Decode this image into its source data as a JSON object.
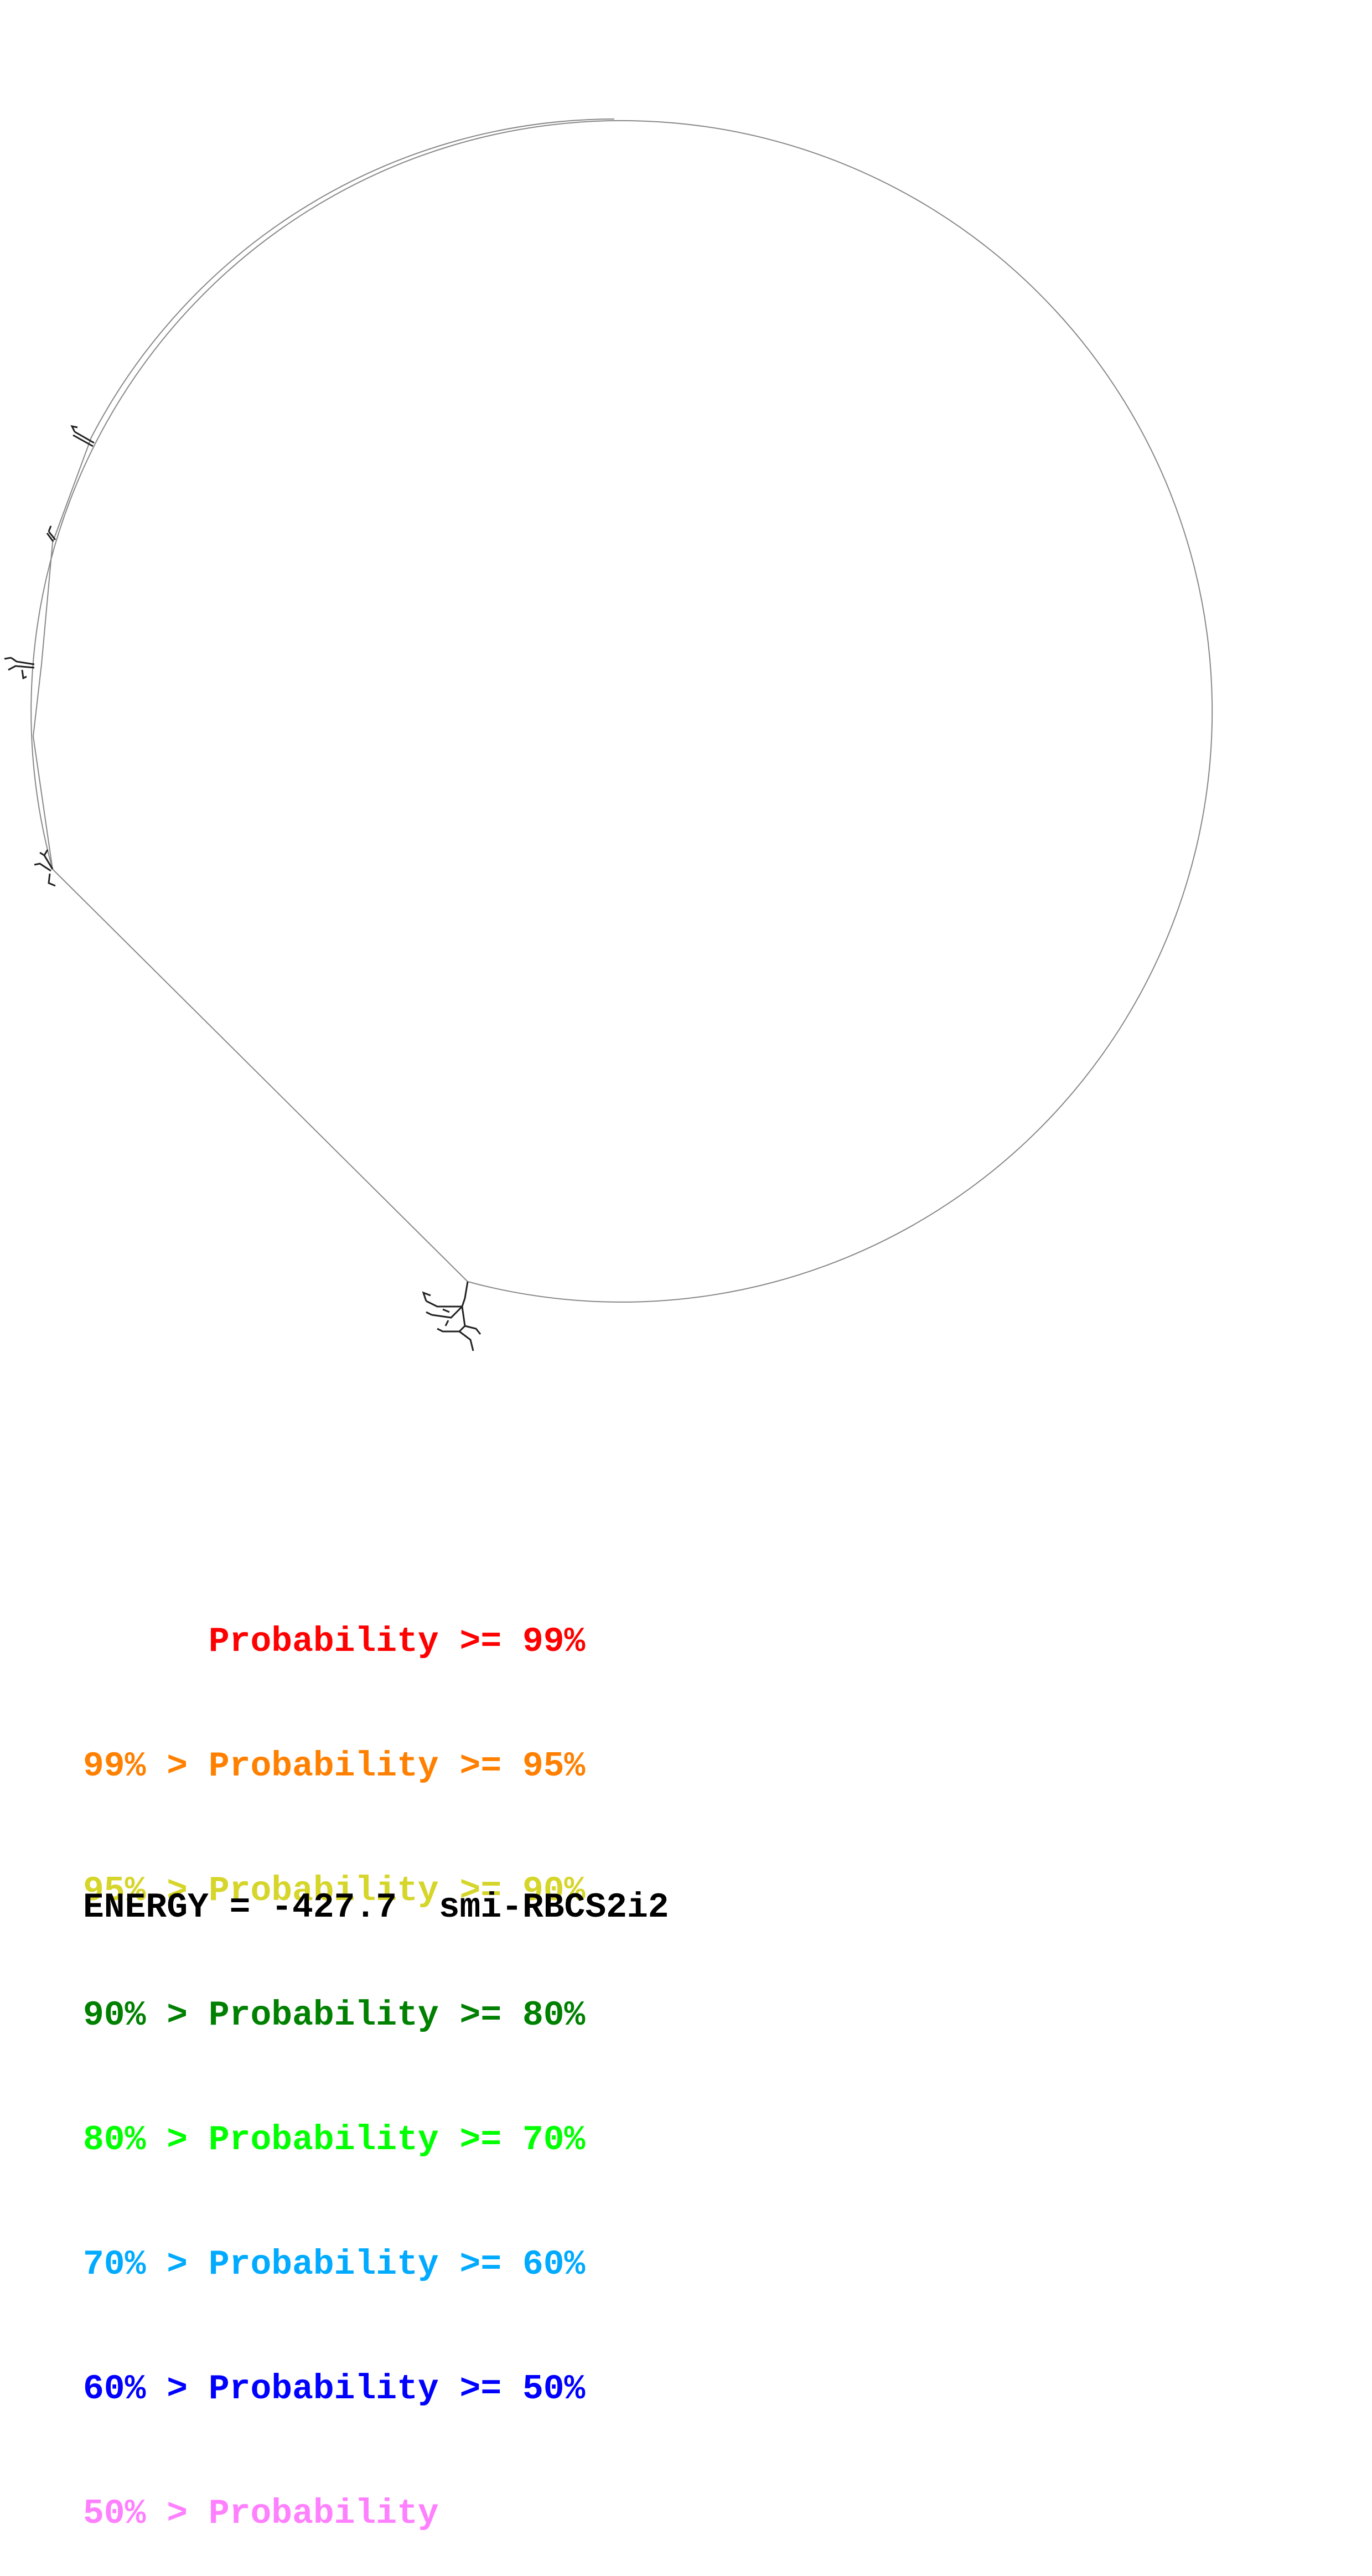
{
  "legend": {
    "lines": [
      {
        "prefix": "",
        "label": "Probability",
        "suffix": " >= 99%",
        "color": "#ff0000"
      },
      {
        "prefix": "99% > ",
        "label": "Probability",
        "suffix": " >= 95%",
        "color": "#ff8000"
      },
      {
        "prefix": "95% > ",
        "label": "Probability",
        "suffix": " >= 90%",
        "color": "#d5d52a"
      },
      {
        "prefix": "90% > ",
        "label": "Probability",
        "suffix": " >= 80%",
        "color": "#008000"
      },
      {
        "prefix": "80% > ",
        "label": "Probability",
        "suffix": " >= 70%",
        "color": "#00ff00"
      },
      {
        "prefix": "70% > ",
        "label": "Probability",
        "suffix": " >= 60%",
        "color": "#00aaff"
      },
      {
        "prefix": "60% > ",
        "label": "Probability",
        "suffix": " >= 50%",
        "color": "#0000ff"
      },
      {
        "prefix": "50% > ",
        "label": "Probability",
        "suffix": "",
        "color": "#ff80ff"
      }
    ]
  },
  "footer": {
    "energy_label": "ENERGY = -427.7",
    "sequence_name": "smi-RBCS2i2"
  }
}
